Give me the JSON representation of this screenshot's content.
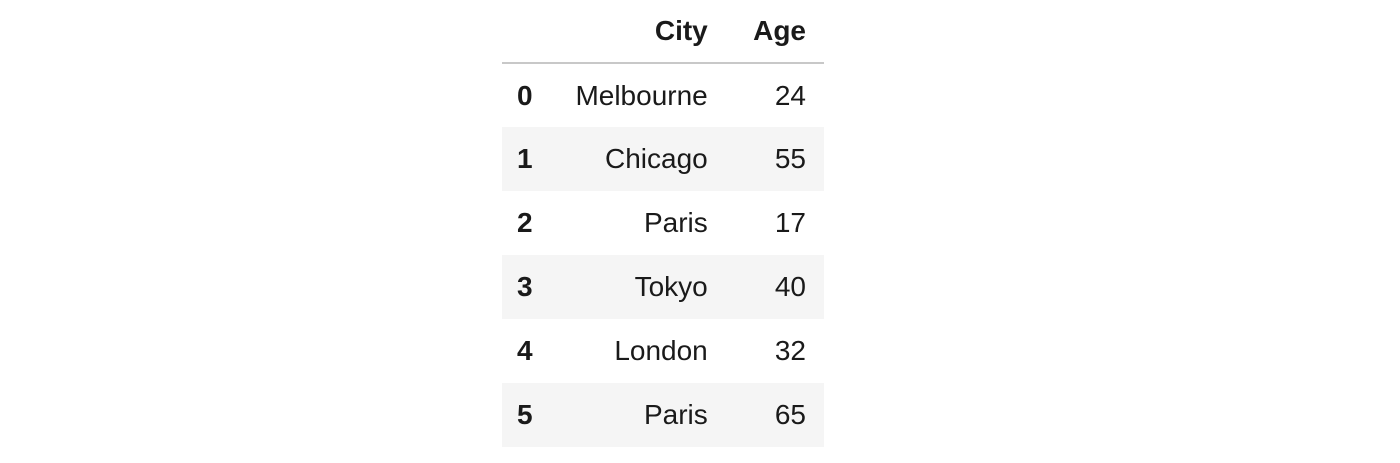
{
  "table": {
    "columns": [
      "",
      "City",
      "Age"
    ],
    "rows": [
      {
        "index": "0",
        "city": "Melbourne",
        "age": "24"
      },
      {
        "index": "1",
        "city": "Chicago",
        "age": "55"
      },
      {
        "index": "2",
        "city": "Paris",
        "age": "17"
      },
      {
        "index": "3",
        "city": "Tokyo",
        "age": "40"
      },
      {
        "index": "4",
        "city": "London",
        "age": "32"
      },
      {
        "index": "5",
        "city": "Paris",
        "age": "65"
      }
    ]
  },
  "colors": {
    "stripe": "#f5f5f5",
    "header_rule": "#c8c8c8",
    "text": "#1a1a1a"
  }
}
